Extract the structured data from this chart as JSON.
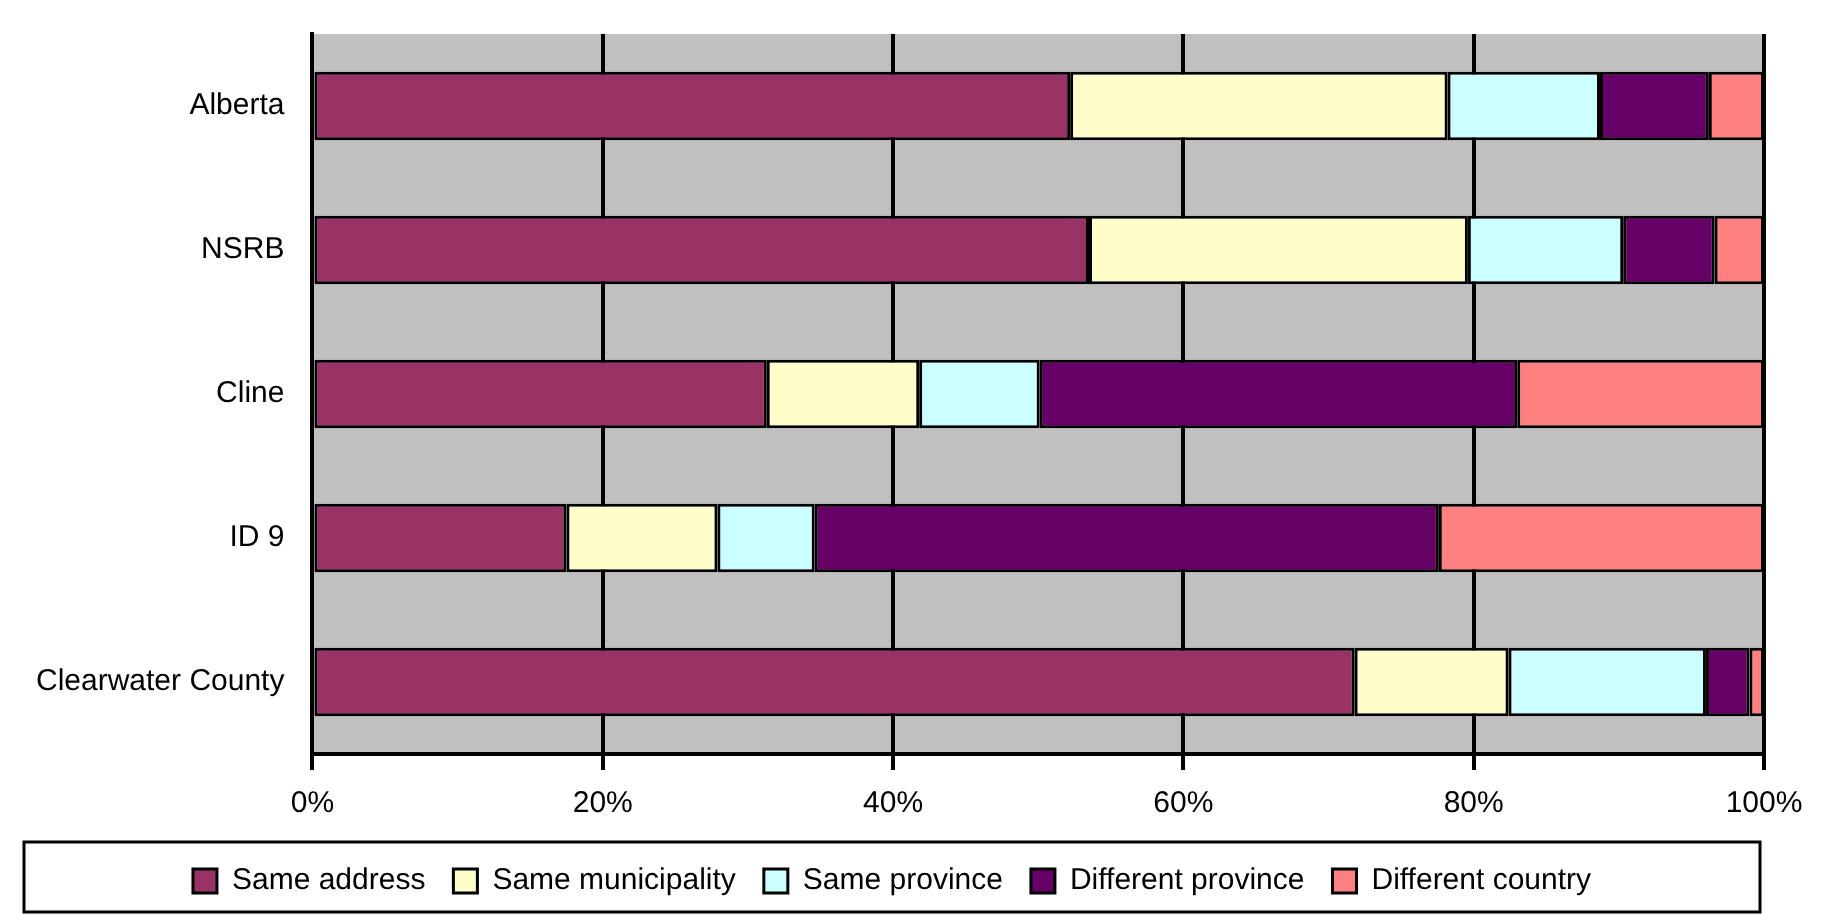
{
  "chart_data": {
    "type": "bar",
    "orientation": "horizontal",
    "stacked": true,
    "categories": [
      "Alberta",
      "NSRB",
      "Cline",
      "ID 9",
      "Clearwater County"
    ],
    "series": [
      {
        "name": "Same address",
        "color": "#993366",
        "values": [
          52.2,
          53.5,
          31.3,
          17.5,
          71.8
        ]
      },
      {
        "name": "Same municipality",
        "color": "#ffffcc",
        "values": [
          26.0,
          26.1,
          10.5,
          10.4,
          10.6
        ]
      },
      {
        "name": "Same province",
        "color": "#ccffff",
        "values": [
          10.5,
          10.7,
          8.3,
          6.7,
          13.6
        ]
      },
      {
        "name": "Different province",
        "color": "#660066",
        "values": [
          7.5,
          6.3,
          32.9,
          43.0,
          3.0
        ]
      },
      {
        "name": "Different country",
        "color": "#ff8080",
        "values": [
          3.8,
          3.4,
          17.0,
          22.4,
          1.0
        ]
      }
    ],
    "xlim": [
      0,
      100
    ],
    "xticks": [
      {
        "value": 0,
        "label": "0%"
      },
      {
        "value": 20,
        "label": "20%"
      },
      {
        "value": 40,
        "label": "40%"
      },
      {
        "value": 60,
        "label": "60%"
      },
      {
        "value": 80,
        "label": "80%"
      },
      {
        "value": 100,
        "label": "100%"
      }
    ],
    "grid": "x",
    "legend": "bottom"
  }
}
